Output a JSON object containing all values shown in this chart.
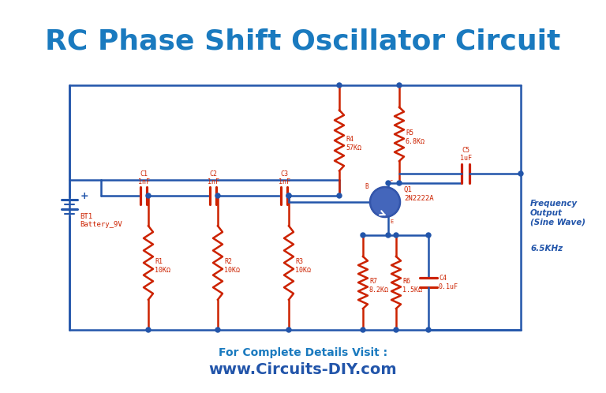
{
  "title": "RC Phase Shift Oscillator Circuit",
  "title_color": "#1a7abf",
  "title_fontsize": 26,
  "bg_color": "#ffffff",
  "wire_color": "#2255aa",
  "component_color": "#cc2200",
  "label_color": "#cc2200",
  "transistor_fill": "#4466bb",
  "transistor_border": "#3355aa",
  "footer_text1": "For Complete Details Visit :",
  "footer_text2": "www.Circuits-DIY.com",
  "footer_color1": "#1a7abf",
  "footer_color2": "#2255aa",
  "freq_output_color": "#2255aa",
  "freq_text": "Frequency\nOutput\n(Sine Wave)",
  "freq_value": "6.5KHz"
}
